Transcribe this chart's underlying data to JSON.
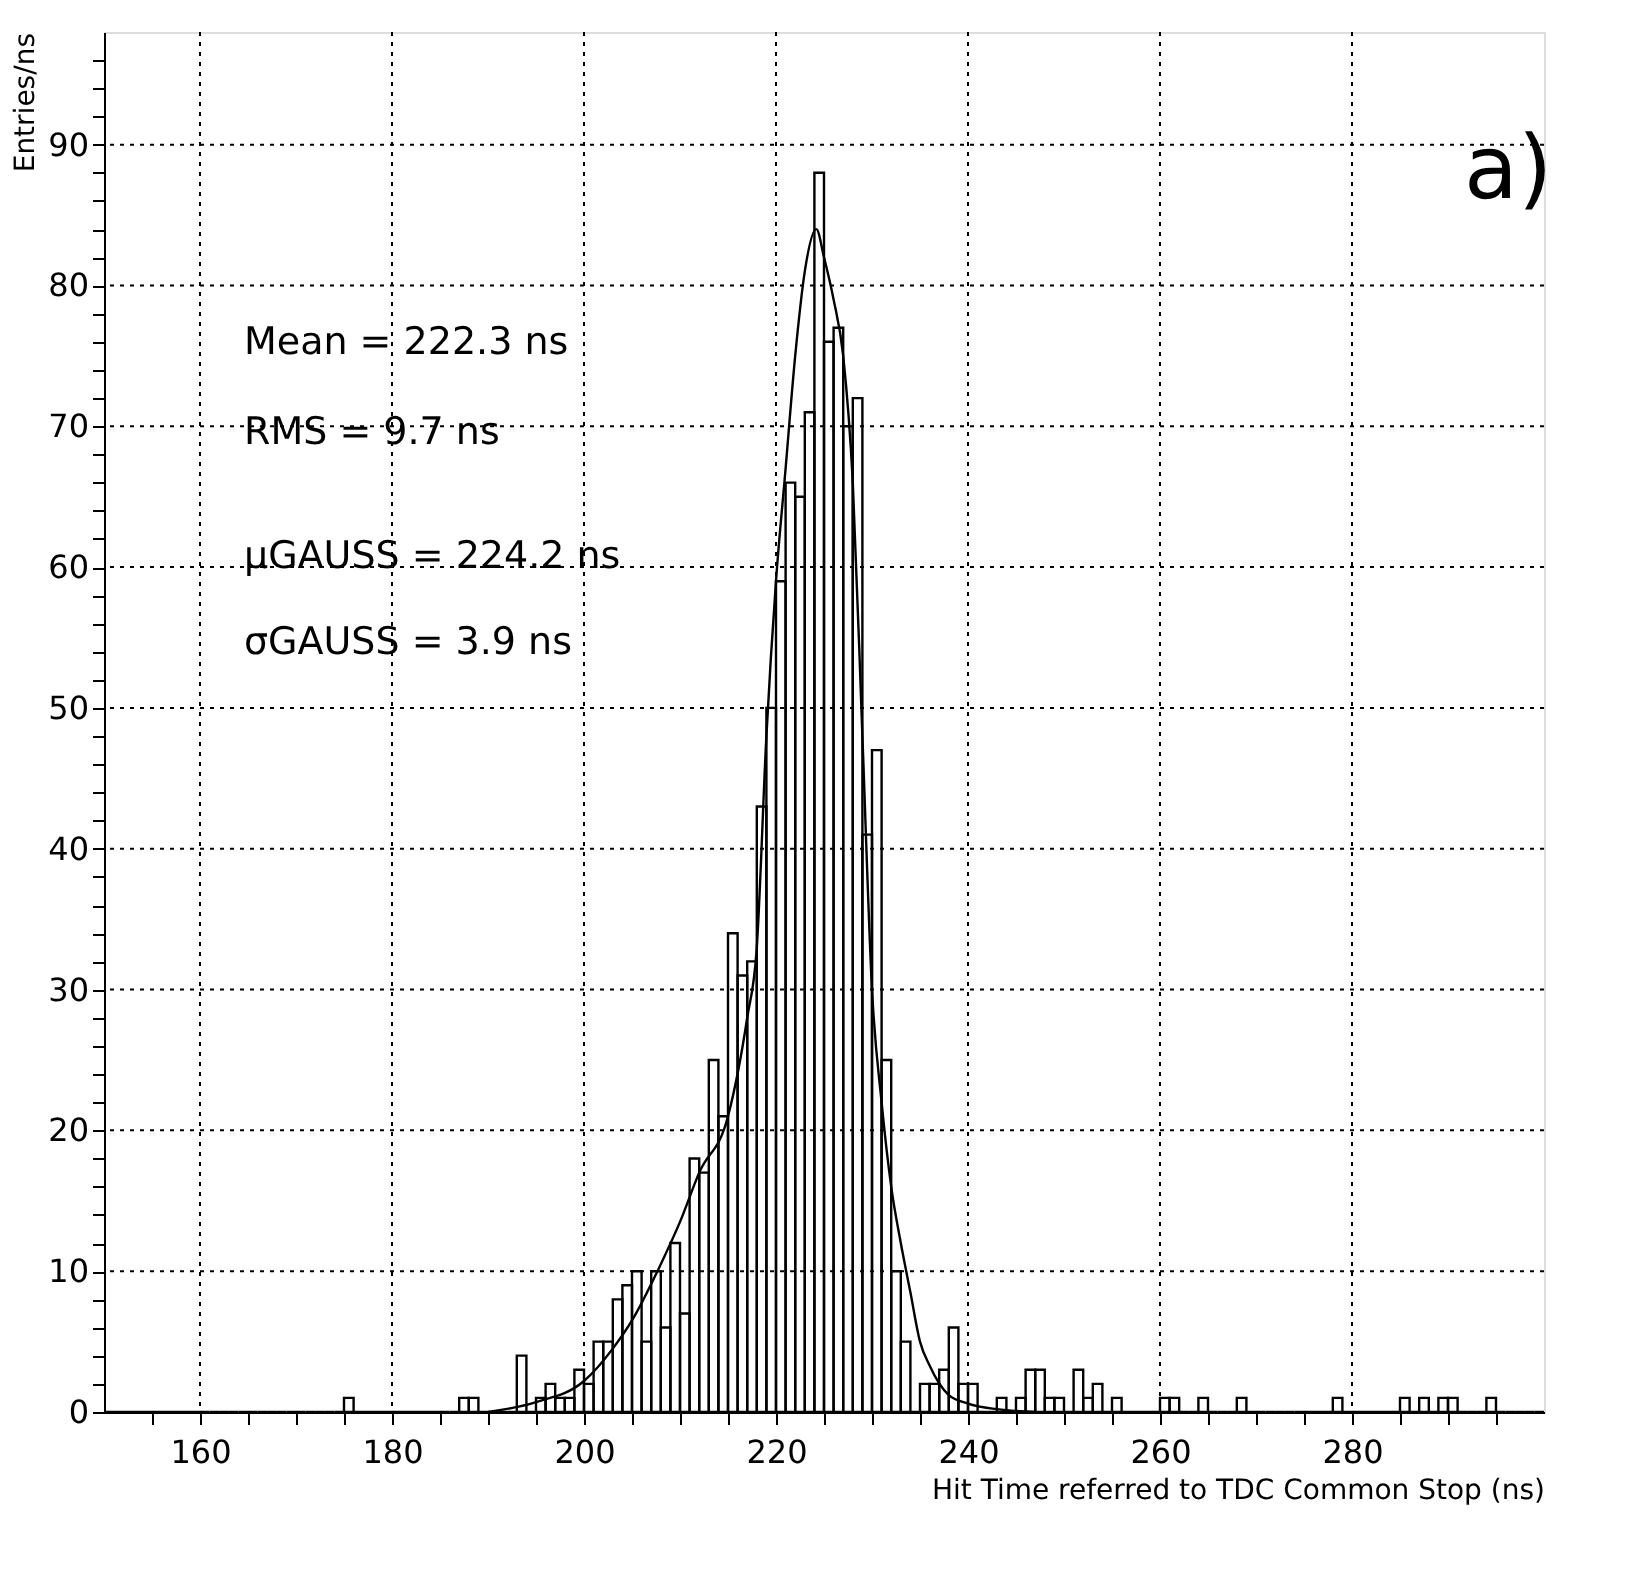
{
  "chart_data": {
    "type": "histogram",
    "xlabel": "Hit Time referred to TDC Common Stop (ns)",
    "ylabel": "Entries/ns",
    "annotations": [
      "Mean = 222.3 ns",
      "RMS = 9.7 ns",
      "μGAUSS = 224.2 ns",
      "σGAUSS = 3.9 ns",
      "a)"
    ],
    "bins": [
      150,
      151,
      152,
      153,
      154,
      155,
      156,
      157,
      158,
      159,
      160,
      161,
      162,
      163,
      164,
      165,
      166,
      167,
      168,
      169,
      170,
      171,
      172,
      173,
      174,
      175,
      176,
      177,
      178,
      179,
      180,
      181,
      182,
      183,
      184,
      185,
      186,
      187,
      188,
      189,
      190,
      191,
      192,
      193,
      194,
      195,
      196,
      197,
      198,
      199,
      200,
      201,
      202,
      203,
      204,
      205,
      206,
      207,
      208,
      209,
      210,
      211,
      212,
      213,
      214,
      215,
      216,
      217,
      218,
      219,
      220,
      221,
      222,
      223,
      224,
      225,
      226,
      227,
      228,
      229,
      230,
      231,
      232,
      233,
      234,
      235,
      236,
      237,
      238,
      239,
      240,
      241,
      242,
      243,
      244,
      245,
      246,
      247,
      248,
      249,
      250,
      251,
      252,
      253,
      254,
      255,
      256,
      257,
      258,
      259,
      260,
      261,
      262,
      263,
      264,
      265,
      266,
      267,
      268,
      269,
      270,
      271,
      272,
      273,
      274,
      275,
      276,
      277,
      278,
      279,
      280,
      281,
      282,
      283,
      284,
      285,
      286,
      287,
      288,
      289,
      290,
      291,
      292,
      293,
      294,
      295,
      296,
      297,
      298,
      299,
      300
    ],
    "series": [
      {
        "type": "histogram",
        "color": "#000000",
        "values": [
          0,
          0,
          0,
          0,
          0,
          0,
          0,
          0,
          0,
          0,
          0,
          0,
          0,
          0,
          0,
          0,
          0,
          0,
          0,
          0,
          0,
          0,
          0,
          0,
          0,
          1,
          0,
          0,
          0,
          0,
          0,
          0,
          0,
          0,
          0,
          0,
          0,
          1,
          1,
          0,
          0,
          0,
          0,
          4,
          0,
          1,
          2,
          1,
          1,
          3,
          2,
          5,
          5,
          8,
          9,
          10,
          5,
          10,
          6,
          12,
          7,
          18,
          17,
          25,
          21,
          34,
          31,
          32,
          43,
          50,
          59,
          66,
          65,
          71,
          88,
          76,
          77,
          70,
          72,
          41,
          47,
          25,
          10,
          5,
          0,
          2,
          2,
          3,
          6,
          2,
          2,
          0,
          0,
          1,
          0,
          1,
          3,
          3,
          1,
          1,
          0,
          3,
          1,
          2,
          0,
          1,
          0,
          0,
          0,
          0,
          1,
          1,
          0,
          0,
          1,
          0,
          0,
          0,
          1,
          0,
          0,
          0,
          0,
          0,
          0,
          0,
          0,
          0,
          1,
          0,
          0,
          0,
          0,
          0,
          0,
          1,
          0,
          1,
          0,
          1,
          1,
          0,
          0,
          0,
          1,
          0,
          0,
          0,
          0,
          0
        ]
      },
      {
        "type": "line",
        "color": "#000000",
        "x": [
          190,
          195,
          200,
          203,
          205,
          208,
          210,
          212,
          215,
          217,
          218,
          219,
          220,
          221,
          222,
          223,
          224.2,
          225,
          226,
          227,
          228,
          229,
          230,
          231,
          232,
          233,
          234,
          235,
          236,
          238,
          240,
          243,
          247
        ],
        "values": [
          0,
          0.7,
          2.2,
          4.5,
          6.5,
          10.5,
          13.5,
          17,
          21,
          28,
          33,
          48,
          59,
          67,
          75,
          81,
          84,
          82,
          79,
          75,
          66,
          48,
          30,
          22,
          16,
          12,
          8.5,
          5,
          3.3,
          1.2,
          0.6,
          0.2,
          0
        ]
      }
    ],
    "xlim": [
      150,
      300
    ],
    "ylim": [
      0,
      98
    ],
    "xticks": [
      {
        "value": 155,
        "label": null
      },
      160,
      {
        "value": 165,
        "label": null
      },
      {
        "value": 170,
        "label": null
      },
      {
        "value": 175,
        "label": null
      },
      180,
      {
        "value": 185,
        "label": null
      },
      {
        "value": 190,
        "label": null
      },
      {
        "value": 195,
        "label": null
      },
      200,
      {
        "value": 205,
        "label": null
      },
      {
        "value": 210,
        "label": null
      },
      {
        "value": 215,
        "label": null
      },
      220,
      {
        "value": 225,
        "label": null
      },
      {
        "value": 230,
        "label": null
      },
      {
        "value": 235,
        "label": null
      },
      240,
      {
        "value": 245,
        "label": null
      },
      {
        "value": 250,
        "label": null
      },
      {
        "value": 255,
        "label": null
      },
      260,
      {
        "value": 265,
        "label": null
      },
      {
        "value": 270,
        "label": null
      },
      {
        "value": 275,
        "label": null
      },
      280,
      {
        "value": 285,
        "label": null
      },
      {
        "value": 290,
        "label": null
      },
      {
        "value": 295,
        "label": null
      }
    ],
    "yticks": [
      0,
      {
        "value": 2,
        "label": null
      },
      {
        "value": 4,
        "label": null
      },
      {
        "value": 6,
        "label": null
      },
      {
        "value": 8,
        "label": null
      },
      10,
      {
        "value": 12,
        "label": null
      },
      {
        "value": 14,
        "label": null
      },
      {
        "value": 16,
        "label": null
      },
      {
        "value": 18,
        "label": null
      },
      20,
      {
        "value": 22,
        "label": null
      },
      {
        "value": 24,
        "label": null
      },
      {
        "value": 26,
        "label": null
      },
      {
        "value": 28,
        "label": null
      },
      30,
      {
        "value": 32,
        "label": null
      },
      {
        "value": 34,
        "label": null
      },
      {
        "value": 36,
        "label": null
      },
      {
        "value": 38,
        "label": null
      },
      40,
      {
        "value": 42,
        "label": null
      },
      {
        "value": 44,
        "label": null
      },
      {
        "value": 46,
        "label": null
      },
      {
        "value": 48,
        "label": null
      },
      50,
      {
        "value": 52,
        "label": null
      },
      {
        "value": 54,
        "label": null
      },
      {
        "value": 56,
        "label": null
      },
      {
        "value": 58,
        "label": null
      },
      60,
      {
        "value": 62,
        "label": null
      },
      {
        "value": 64,
        "label": null
      },
      {
        "value": 66,
        "label": null
      },
      {
        "value": 68,
        "label": null
      },
      70,
      {
        "value": 72,
        "label": null
      },
      {
        "value": 74,
        "label": null
      },
      {
        "value": 76,
        "label": null
      },
      {
        "value": 78,
        "label": null
      },
      80,
      {
        "value": 82,
        "label": null
      },
      {
        "value": 84,
        "label": null
      },
      {
        "value": 86,
        "label": null
      },
      {
        "value": 88,
        "label": null
      },
      90,
      {
        "value": 92,
        "label": null
      },
      {
        "value": 94,
        "label": null
      },
      {
        "value": 96,
        "label": null
      }
    ],
    "grid": true
  }
}
